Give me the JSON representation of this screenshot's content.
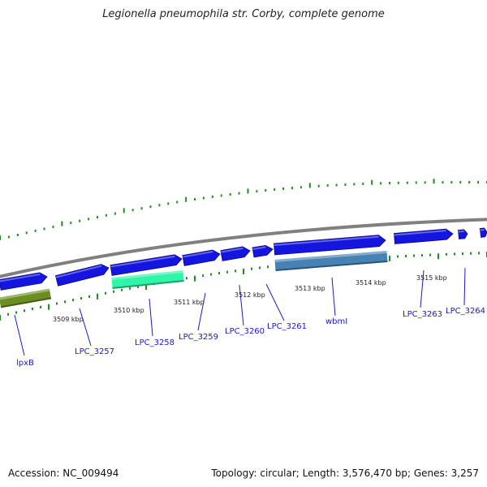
{
  "title": "Legionella pneumophila str. Corby, complete genome",
  "footer": {
    "accession": "Accession: NC_009494",
    "topology": "Topology: circular; Length: 3,576,470 bp; Genes: 3,257"
  },
  "colors": {
    "backbone": "#808080",
    "gene_forward": "#1515e0",
    "gene_lpxB": "#6b8e23",
    "gene_LPC_3258": "#2ef5a8",
    "gene_wbmI": "#4682b4",
    "ticks": "#228b22",
    "label": "#1a1acc"
  },
  "kbp_labels": [
    {
      "text": "3509 kbp"
    },
    {
      "text": "3510 kbp"
    },
    {
      "text": "3511 kbp"
    },
    {
      "text": "3512 kbp"
    },
    {
      "text": "3513 kbp"
    },
    {
      "text": "3514 kbp"
    },
    {
      "text": "3515 kbp"
    }
  ],
  "genes": [
    {
      "label": "lpxB"
    },
    {
      "label": "LPC_3257"
    },
    {
      "label": "LPC_3258"
    },
    {
      "label": "LPC_3259"
    },
    {
      "label": "LPC_3260"
    },
    {
      "label": "LPC_3261"
    },
    {
      "label": "wbmI"
    },
    {
      "label": "LPC_3263"
    },
    {
      "label": "LPC_3264"
    }
  ]
}
